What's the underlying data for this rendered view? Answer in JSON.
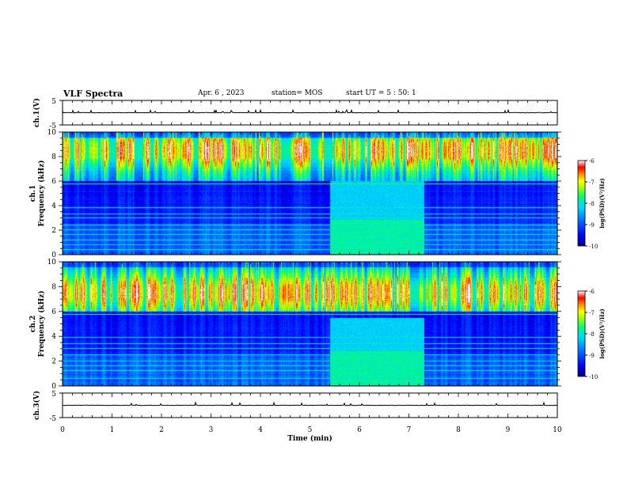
{
  "header": {
    "title": "VLF Spectra",
    "date": "Apr. 6 , 2023",
    "station": "station= MOS",
    "start": "start UT = 5 : 50: 1"
  },
  "chart_data": [
    {
      "type": "line",
      "name": "ch.1 waveform",
      "ylabel": "ch.1(V)",
      "ylim": [
        -5,
        5
      ],
      "yticks": [
        "5",
        "-5"
      ],
      "xlim": [
        0,
        10
      ],
      "baseline": 0,
      "grid": false
    },
    {
      "type": "heatmap",
      "name": "ch.1 spectrogram",
      "ylabel_channel": "ch.1",
      "ylabel": "Frequency (kHz)",
      "ylim": [
        0,
        10
      ],
      "yticks": [
        "0",
        "2",
        "4",
        "6",
        "8",
        "10"
      ],
      "xlim": [
        0,
        10
      ],
      "colorbar": {
        "label": "log(PSD)(V²/Hz)",
        "range": [
          -10,
          -6
        ],
        "ticks": [
          "-6",
          "-7",
          "-8",
          "-9",
          "-10"
        ]
      },
      "features": {
        "sferic_band_khz": [
          6,
          10
        ],
        "sferic_peak_khz": 8.5,
        "broadband_enhancement_min": [
          5.4,
          7.3
        ],
        "broadband_enhancement_khz": [
          0,
          6
        ],
        "spectral_lines_khz": [
          0.4,
          0.8,
          1.2,
          1.6,
          2.0,
          2.4,
          3.0,
          3.3,
          3.8,
          5.8
        ]
      }
    },
    {
      "type": "heatmap",
      "name": "ch.2 spectrogram",
      "ylabel_channel": "ch.2",
      "ylabel": "Frequency (kHz)",
      "ylim": [
        0,
        10
      ],
      "yticks": [
        "0",
        "2",
        "4",
        "6",
        "8",
        "10"
      ],
      "xlim": [
        0,
        10
      ],
      "colorbar": {
        "label": "log(PSD)(V²/Hz)",
        "range": [
          -10,
          -6
        ],
        "ticks": [
          "-6",
          "-7",
          "-8",
          "-9",
          "-10"
        ]
      },
      "features": {
        "sferic_band_khz": [
          6,
          10
        ],
        "sferic_peak_khz": 7.5,
        "broadband_enhancement_min": [
          5.4,
          7.3
        ],
        "broadband_enhancement_khz": [
          0,
          5.5
        ],
        "spectral_lines_khz": [
          0.6,
          1.2,
          1.6,
          2.0,
          2.5,
          3.0,
          3.4,
          3.9,
          5.8
        ]
      }
    },
    {
      "type": "line",
      "name": "ch.3 waveform",
      "ylabel": "ch.3(V)",
      "ylim": [
        -5,
        5
      ],
      "yticks": [
        "5",
        "-5"
      ],
      "xlim": [
        0,
        10
      ],
      "baseline": 0,
      "grid": false
    }
  ],
  "xaxis": {
    "label": "Time (min)",
    "range": [
      0,
      10
    ],
    "ticks": [
      "0",
      "1",
      "2",
      "3",
      "4",
      "5",
      "6",
      "7",
      "8",
      "9",
      "10"
    ]
  },
  "colors": {
    "colormap": [
      "#00008c",
      "#0000ff",
      "#0070ff",
      "#00d8ff",
      "#00ff70",
      "#a0ff00",
      "#ffff00",
      "#ff8c00",
      "#ff0000",
      "#ffffff"
    ]
  }
}
